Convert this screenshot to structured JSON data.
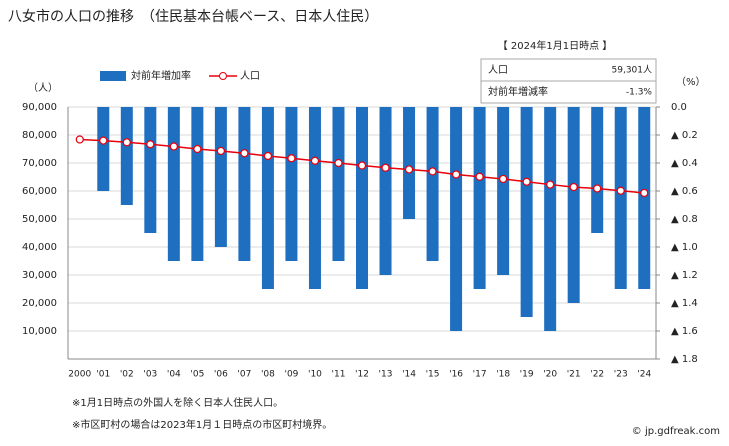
{
  "chart_data": {
    "type": "bar_line",
    "title": "八女市の人口の推移　（住民基本台帳ベース、日本人住民）",
    "y_label": "（人）",
    "y2_label": "（%）",
    "categories": [
      "2000",
      "'01",
      "'02",
      "'03",
      "'04",
      "'05",
      "'06",
      "'07",
      "'08",
      "'09",
      "'10",
      "'11",
      "'12",
      "'13",
      "'14",
      "'15",
      "'16",
      "'17",
      "'18",
      "'19",
      "'20",
      "'21",
      "'22",
      "'23",
      "'24"
    ],
    "series": [
      {
        "name": "対前年増加率",
        "type": "bar",
        "axis": "y2",
        "color": "#1f6fc0",
        "values": [
          null,
          -0.6,
          -0.7,
          -0.9,
          -1.1,
          -1.1,
          -1.0,
          -1.1,
          -1.3,
          -1.1,
          -1.3,
          -1.1,
          -1.3,
          -1.2,
          -0.8,
          -1.1,
          -1.6,
          -1.3,
          -1.2,
          -1.5,
          -1.6,
          -1.4,
          -0.9,
          -1.3,
          -1.3
        ]
      },
      {
        "name": "人口",
        "type": "line",
        "axis": "y",
        "color": "#e8000b",
        "values": [
          78400,
          78000,
          77400,
          76700,
          75900,
          75000,
          74300,
          73500,
          72500,
          71700,
          70800,
          70000,
          69100,
          68300,
          67700,
          67000,
          65900,
          65100,
          64300,
          63300,
          62300,
          61400,
          60900,
          60100,
          59301
        ]
      }
    ],
    "ylim": [
      0,
      90000
    ],
    "yticks": [
      {
        "value": 10000,
        "label": "10,000"
      },
      {
        "value": 20000,
        "label": "20,000"
      },
      {
        "value": 30000,
        "label": "30,000"
      },
      {
        "value": 40000,
        "label": "40,000"
      },
      {
        "value": 50000,
        "label": "50,000"
      },
      {
        "value": 60000,
        "label": "60,000"
      },
      {
        "value": 70000,
        "label": "70,000"
      },
      {
        "value": 80000,
        "label": "80,000"
      },
      {
        "value": 90000,
        "label": "90,000"
      }
    ],
    "y2lim": [
      0,
      -1.8
    ],
    "y2ticks": [
      {
        "value": 0,
        "label": "0.0"
      },
      {
        "value": -0.2,
        "label": "▲ 0.2"
      },
      {
        "value": -0.4,
        "label": "▲ 0.4"
      },
      {
        "value": -0.6,
        "label": "▲ 0.6"
      },
      {
        "value": -0.8,
        "label": "▲ 0.8"
      },
      {
        "value": -1.0,
        "label": "▲ 1.0"
      },
      {
        "value": -1.2,
        "label": "▲ 1.2"
      },
      {
        "value": -1.4,
        "label": "▲ 1.4"
      },
      {
        "value": -1.6,
        "label": "▲ 1.6"
      },
      {
        "value": -1.8,
        "label": "▲ 1.8"
      }
    ],
    "grid": true,
    "info": {
      "heading": "【 2024年1月1日時点 】",
      "rows": [
        [
          "人口",
          "59,301人"
        ],
        [
          "対前年増減率",
          "-1.3%"
        ]
      ]
    },
    "notes": [
      "※1月1日時点の外国人を除く日本人住民人口。",
      "※市区町村の場合は2023年1月１日時点の市区町村境界。"
    ],
    "credit": "© jp.gdfreak.com"
  }
}
